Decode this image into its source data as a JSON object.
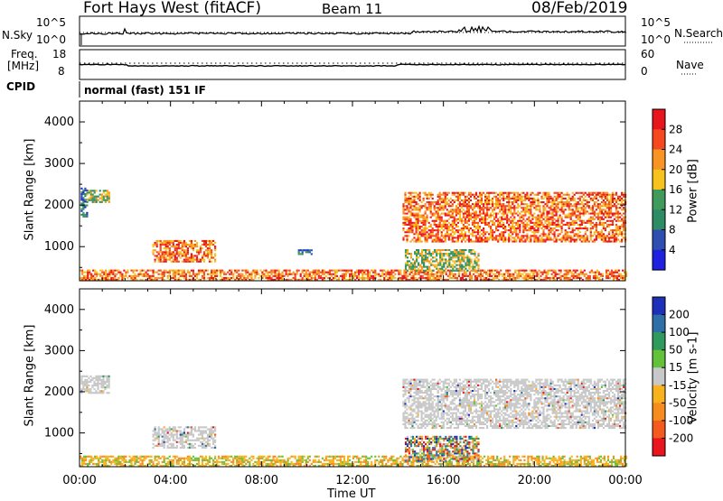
{
  "header": {
    "station": "Fort Hays West (fitACF)",
    "beam": "Beam 11",
    "date": "08/Feb/2019"
  },
  "noise_panel": {
    "left_label": "N.Sky",
    "right_label": "N.Search",
    "left_top": "10^5",
    "left_bottom": "10^0",
    "right_top": "10^5",
    "right_bottom": "10^0"
  },
  "freq_panel": {
    "left_label_1": "Freq.",
    "left_label_2": "[MHz]",
    "left_top": "18",
    "left_bottom": "8",
    "right_label": "Nave",
    "right_top": "60",
    "right_bottom": "0"
  },
  "cpid": {
    "label": "CPID",
    "value": "normal (fast) 151 IF"
  },
  "chart_data": [
    {
      "type": "heatmap",
      "name": "power",
      "ylabel": "Slant Range [km]",
      "xlabel": "",
      "ylim": [
        180,
        4500
      ],
      "xlim": [
        0,
        24
      ],
      "yticks": [
        1000,
        2000,
        3000,
        4000
      ],
      "colorbar": {
        "label": "Power [dB]",
        "ticks": [
          "28",
          "24",
          "20",
          "16",
          "12",
          "8",
          "4"
        ],
        "colors": [
          "#e8141e",
          "#f5481e",
          "#f79424",
          "#f7c21e",
          "#3f9a5b",
          "#2d8c63",
          "#2f4fb0",
          "#2020e0"
        ]
      },
      "regions": [
        {
          "t0": 0.05,
          "t1": 0.3,
          "r0": 1700,
          "r1": 2400,
          "level": "low"
        },
        {
          "t0": 0.3,
          "t1": 1.3,
          "r0": 2050,
          "r1": 2350,
          "level": "mid"
        },
        {
          "t0": 3.2,
          "t1": 6.0,
          "r0": 620,
          "r1": 1150,
          "level": "high"
        },
        {
          "t0": 0.0,
          "t1": 24.0,
          "r0": 180,
          "r1": 420,
          "level": "high"
        },
        {
          "t0": 14.2,
          "t1": 24.0,
          "r0": 1100,
          "r1": 2300,
          "level": "high"
        },
        {
          "t0": 14.3,
          "t1": 17.5,
          "r0": 400,
          "r1": 900,
          "level": "mid"
        },
        {
          "t0": 9.6,
          "t1": 10.2,
          "r0": 800,
          "r1": 900,
          "level": "low"
        }
      ]
    },
    {
      "type": "heatmap",
      "name": "velocity",
      "ylabel": "Slant Range [km]",
      "xlabel": "Time UT",
      "ylim": [
        180,
        4500
      ],
      "xlim": [
        0,
        24
      ],
      "yticks": [
        1000,
        2000,
        3000,
        4000
      ],
      "colorbar": {
        "label": "Velocity [m s-1]",
        "ticks": [
          "200",
          "100",
          "50",
          "15",
          "-15",
          "-50",
          "-100",
          "-200"
        ],
        "colors": [
          "#1e2fb8",
          "#2f6fa8",
          "#2e9a5c",
          "#62c23a",
          "#c8c8c8",
          "#f7b21e",
          "#f78c1e",
          "#f45a1e",
          "#e8141e"
        ]
      },
      "regions": [
        {
          "t0": 0.05,
          "t1": 1.3,
          "r0": 1950,
          "r1": 2400,
          "level": "zero"
        },
        {
          "t0": 3.2,
          "t1": 6.0,
          "r0": 620,
          "r1": 1150,
          "level": "zero"
        },
        {
          "t0": 0.0,
          "t1": 24.0,
          "r0": 180,
          "r1": 420,
          "level": "neg"
        },
        {
          "t0": 14.2,
          "t1": 24.0,
          "r0": 1100,
          "r1": 2300,
          "level": "zero"
        },
        {
          "t0": 14.3,
          "t1": 17.5,
          "r0": 300,
          "r1": 900,
          "level": "mix"
        }
      ]
    }
  ],
  "x_axis": {
    "ticks": [
      "00:00",
      "04:00",
      "08:00",
      "12:00",
      "16:00",
      "20:00",
      "00:00"
    ],
    "label": "Time UT"
  }
}
